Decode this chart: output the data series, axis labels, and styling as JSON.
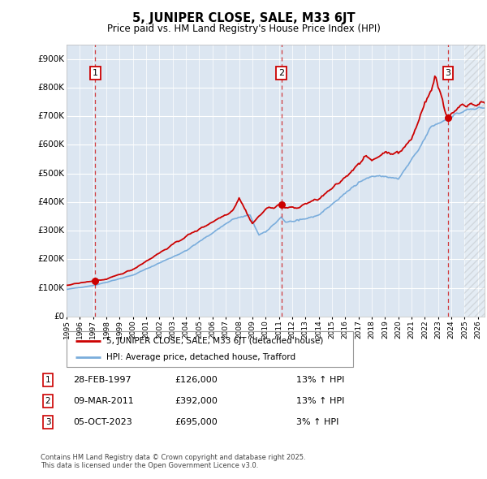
{
  "title": "5, JUNIPER CLOSE, SALE, M33 6JT",
  "subtitle": "Price paid vs. HM Land Registry's House Price Index (HPI)",
  "xlim_start": 1995.0,
  "xlim_end": 2026.5,
  "ylim": [
    0,
    950000
  ],
  "yticks": [
    0,
    100000,
    200000,
    300000,
    400000,
    500000,
    600000,
    700000,
    800000,
    900000
  ],
  "ytick_labels": [
    "£0",
    "£100K",
    "£200K",
    "£300K",
    "£400K",
    "£500K",
    "£600K",
    "£700K",
    "£800K",
    "£900K"
  ],
  "sale_color": "#cc0000",
  "hpi_color": "#7aaddc",
  "plot_bg": "#dce6f1",
  "sale_label": "5, JUNIPER CLOSE, SALE, M33 6JT (detached house)",
  "hpi_label": "HPI: Average price, detached house, Trafford",
  "transactions": [
    {
      "num": 1,
      "date": "28-FEB-1997",
      "price": 126000,
      "pct": "13%",
      "direction": "↑",
      "year": 1997.16
    },
    {
      "num": 2,
      "date": "09-MAR-2011",
      "price": 392000,
      "pct": "13%",
      "direction": "↑",
      "year": 2011.18
    },
    {
      "num": 3,
      "date": "05-OCT-2023",
      "price": 695000,
      "pct": "3%",
      "direction": "↑",
      "year": 2023.75
    }
  ],
  "footnote": "Contains HM Land Registry data © Crown copyright and database right 2025.\nThis data is licensed under the Open Government Licence v3.0.",
  "hatch_region_start": 2025.0,
  "hatch_region_end": 2026.5
}
